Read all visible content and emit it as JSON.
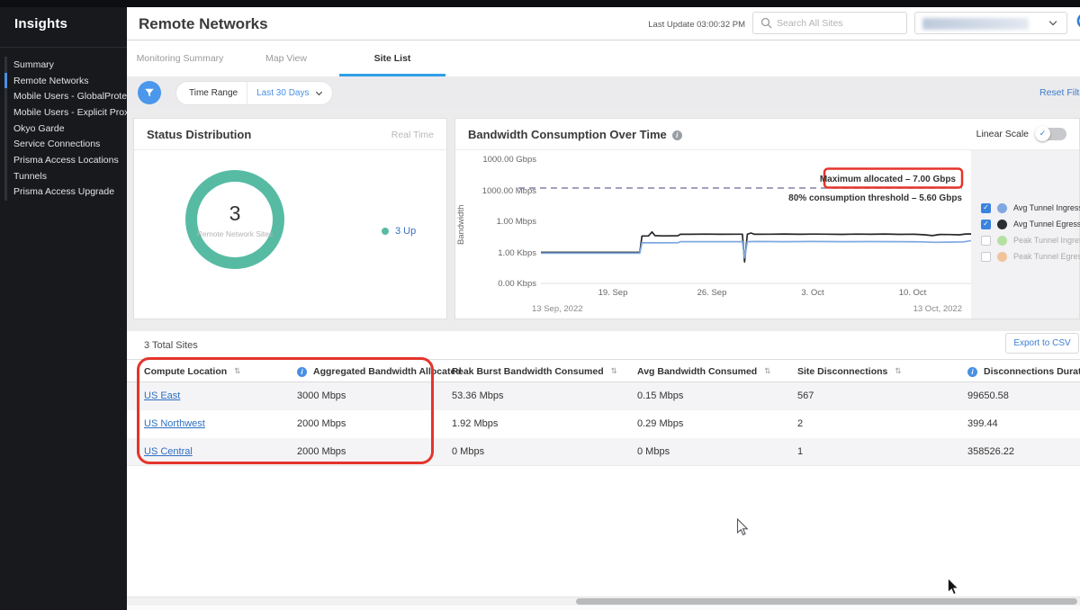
{
  "sidebar": {
    "title": "Insights",
    "items": [
      {
        "label": "Summary",
        "active": false
      },
      {
        "label": "Remote Networks",
        "active": true
      },
      {
        "label": "Mobile Users - GlobalProtect",
        "active": false
      },
      {
        "label": "Mobile Users - Explicit Proxy",
        "active": false
      },
      {
        "label": "Okyo Garde",
        "active": false
      },
      {
        "label": "Service Connections",
        "active": false
      },
      {
        "label": "Prisma Access Locations",
        "active": false
      },
      {
        "label": "Tunnels",
        "active": false
      },
      {
        "label": "Prisma Access Upgrade",
        "active": false
      }
    ]
  },
  "header": {
    "title": "Remote Networks",
    "last_update": "Last Update 03:00:32 PM",
    "search_placeholder": "Search All Sites"
  },
  "tabs": [
    {
      "label": "Monitoring Summary",
      "active": false
    },
    {
      "label": "Map View",
      "active": false
    },
    {
      "label": "Site List",
      "active": true
    }
  ],
  "filter_bar": {
    "field_label": "Time Range",
    "field_value": "Last 30 Days",
    "reset_label": "Reset Filters"
  },
  "status_card": {
    "title": "Status Distribution",
    "mode_label": "Real Time",
    "count": "3",
    "count_label": "Remote Network Sites",
    "ring_color": "#57bba4",
    "legend": [
      {
        "label": "3 Up",
        "dot_color": "#57bba4"
      }
    ]
  },
  "bandwidth_card": {
    "title": "Bandwidth Consumption Over Time",
    "linear_scale_label": "Linear Scale",
    "linear_scale_on": true,
    "max_label_boxed": true,
    "legend": [
      {
        "label": "Avg Tunnel Ingress",
        "color": "#7fa8e0",
        "checked": true
      },
      {
        "label": "Avg Tunnel Egress",
        "color": "#2b2e33",
        "checked": true
      },
      {
        "label": "Peak Tunnel Ingress",
        "color": "#b6dfa2",
        "checked": false
      },
      {
        "label": "Peak Tunnel Egress",
        "color": "#efc39c",
        "checked": false
      }
    ]
  },
  "chart_data": [
    {
      "type": "donut",
      "title": "Status Distribution",
      "total": 3,
      "center_label": "Remote Network Sites",
      "slices": [
        {
          "label": "Up",
          "value": 3,
          "color": "#57bba4"
        }
      ],
      "legend": [
        "3 Up"
      ]
    },
    {
      "type": "line",
      "title": "Bandwidth Consumption Over Time",
      "ylabel": "Bandwidth",
      "scale": "log",
      "y_ticks": [
        "1000.00 Gbps",
        "1000.00 Mbps",
        "1.00 Mbps",
        "1.00 Kbps",
        "0.00 Kbps"
      ],
      "x_ticks": [
        "19. Sep",
        "26. Sep",
        "3. Oct",
        "10. Oct"
      ],
      "x_start_label": "13 Sep, 2022",
      "x_end_label": "13 Oct, 2022",
      "annotations": [
        {
          "label": "Maximum allocated – 7.00 Gbps",
          "value_gbps": 7.0,
          "style": "dashed",
          "highlighted": true
        },
        {
          "label": "80% consumption threshold – 5.60 Gbps",
          "value_gbps": 5.6
        }
      ],
      "series": [
        {
          "name": "Avg Tunnel Ingress",
          "color": "#7fa8e0",
          "visible": true,
          "points_day_kbps": [
            [
              0,
              0.85
            ],
            [
              2,
              0.85
            ],
            [
              4,
              0.85
            ],
            [
              6,
              0.85
            ],
            [
              6.9,
              0.85
            ],
            [
              7.05,
              8.5
            ],
            [
              8,
              8.5
            ],
            [
              9.55,
              8.7
            ],
            [
              9.75,
              11
            ],
            [
              11,
              11
            ],
            [
              12.5,
              11
            ],
            [
              14.05,
              11
            ],
            [
              14.2,
              0.3
            ],
            [
              14.4,
              11
            ],
            [
              15,
              11.5
            ],
            [
              17,
              11
            ],
            [
              19,
              11.5
            ],
            [
              21,
              11
            ],
            [
              23,
              11.3
            ],
            [
              25,
              11
            ],
            [
              26.5,
              10.5
            ],
            [
              27.5,
              9.5
            ],
            [
              28.5,
              10
            ],
            [
              29.5,
              10.5
            ],
            [
              30,
              14
            ]
          ]
        },
        {
          "name": "Avg Tunnel Egress",
          "color": "#26282b",
          "visible": true,
          "points_day_kbps": [
            [
              0,
              1
            ],
            [
              2,
              1
            ],
            [
              4,
              1
            ],
            [
              6,
              1
            ],
            [
              6.9,
              1
            ],
            [
              7.05,
              38
            ],
            [
              7.5,
              40
            ],
            [
              7.75,
              95
            ],
            [
              7.95,
              42
            ],
            [
              8.5,
              40
            ],
            [
              9.55,
              41
            ],
            [
              9.75,
              58
            ],
            [
              10.5,
              57
            ],
            [
              11.5,
              59
            ],
            [
              12.5,
              57
            ],
            [
              13.5,
              58
            ],
            [
              14.05,
              58
            ],
            [
              14.2,
              0.12
            ],
            [
              14.4,
              58
            ],
            [
              14.65,
              75
            ],
            [
              14.9,
              57
            ],
            [
              16,
              58
            ],
            [
              17,
              60
            ],
            [
              18,
              57
            ],
            [
              19,
              59
            ],
            [
              20,
              58
            ],
            [
              21,
              56
            ],
            [
              22,
              59
            ],
            [
              23,
              57
            ],
            [
              24,
              60
            ],
            [
              25,
              56
            ],
            [
              26,
              58
            ],
            [
              26.8,
              50
            ],
            [
              27.3,
              42
            ],
            [
              27.8,
              55
            ],
            [
              28.5,
              53
            ],
            [
              29.2,
              50
            ],
            [
              29.6,
              60
            ],
            [
              30,
              62
            ]
          ]
        },
        {
          "name": "Peak Tunnel Ingress",
          "color": "#b6dfa2",
          "visible": false,
          "points_day_kbps": []
        },
        {
          "name": "Peak Tunnel Egress",
          "color": "#efc39c",
          "visible": false,
          "points_day_kbps": []
        }
      ]
    }
  ],
  "table": {
    "total_label": "3 Total Sites",
    "export_label": "Export to CSV",
    "highlighted_columns": [
      0,
      1
    ],
    "columns": [
      {
        "label": "Compute Location",
        "sort": true
      },
      {
        "label": "Aggregated Bandwidth Allocated",
        "info": true
      },
      {
        "label": "Peak Burst Bandwidth Consumed",
        "sort": true
      },
      {
        "label": "Avg Bandwidth Consumed",
        "sort": true
      },
      {
        "label": "Site Disconnections",
        "sort": true
      },
      {
        "label": "Disconnections Duration",
        "info": true
      }
    ],
    "rows": [
      {
        "cells": [
          "US East",
          "3000 Mbps",
          "53.36 Mbps",
          "0.15 Mbps",
          "567",
          "99650.58"
        ]
      },
      {
        "cells": [
          "US Northwest",
          "2000 Mbps",
          "1.92 Mbps",
          "0.29 Mbps",
          "2",
          "399.44"
        ]
      },
      {
        "cells": [
          "US Central",
          "2000 Mbps",
          "0 Mbps",
          "0 Mbps",
          "1",
          "358526.22"
        ]
      }
    ]
  },
  "glyphs": {
    "sort": "⇅",
    "check": "✓",
    "info": "i"
  },
  "colors": {
    "accent_blue": "#2f7de1",
    "teal": "#57bba4",
    "annotation_red": "#e4342c",
    "sidebar_bg": "#17191d",
    "line_ingress": "#7fa8e0",
    "line_egress": "#26282b"
  }
}
